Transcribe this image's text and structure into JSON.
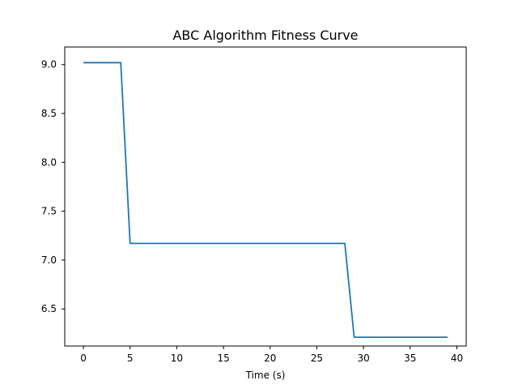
{
  "chart_data": {
    "type": "line",
    "title": "ABC Algorithm Fitness Curve",
    "xlabel": "Time (s)",
    "ylabel": "",
    "xlim": [
      -2,
      41
    ],
    "ylim": [
      6.12,
      9.18
    ],
    "xticks": [
      0,
      5,
      10,
      15,
      20,
      25,
      30,
      35,
      40
    ],
    "yticks": [
      6.5,
      7.0,
      7.5,
      8.0,
      8.5,
      9.0
    ],
    "xtick_labels": [
      "0",
      "5",
      "10",
      "15",
      "20",
      "25",
      "30",
      "35",
      "40"
    ],
    "ytick_labels": [
      "6.5",
      "7.0",
      "7.5",
      "8.0",
      "8.5",
      "9.0"
    ],
    "grid": false,
    "legend": "none",
    "series": [
      {
        "color": "#1f77b4",
        "x": [
          0,
          1,
          2,
          3,
          4,
          5,
          6,
          7,
          8,
          9,
          10,
          11,
          12,
          13,
          14,
          15,
          16,
          17,
          18,
          19,
          20,
          21,
          22,
          23,
          24,
          25,
          26,
          27,
          28,
          29,
          30,
          31,
          32,
          33,
          34,
          35,
          36,
          37,
          38,
          39
        ],
        "y": [
          9.02,
          9.02,
          9.02,
          9.02,
          9.02,
          7.17,
          7.17,
          7.17,
          7.17,
          7.17,
          7.17,
          7.17,
          7.17,
          7.17,
          7.17,
          7.17,
          7.17,
          7.17,
          7.17,
          7.17,
          7.17,
          7.17,
          7.17,
          7.17,
          7.17,
          7.17,
          7.17,
          7.17,
          7.17,
          6.21,
          6.21,
          6.21,
          6.21,
          6.21,
          6.21,
          6.21,
          6.21,
          6.21,
          6.21,
          6.21
        ]
      }
    ]
  }
}
